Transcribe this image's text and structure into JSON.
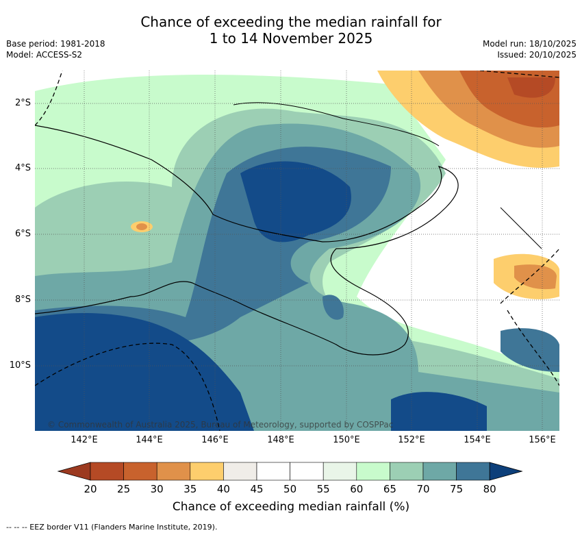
{
  "header": {
    "title_line1": "Chance of exceeding the median rainfall for",
    "title_line2": "1 to 14 November 2025",
    "base_period": "Base period: 1981-2018",
    "model": "Model: ACCESS-S2",
    "model_run": "Model run: 18/10/2025",
    "issued": "Issued: 20/10/2025"
  },
  "map": {
    "lat_ticks": [
      "2°S",
      "4°S",
      "6°S",
      "8°S",
      "10°S"
    ],
    "lon_ticks": [
      "142°E",
      "144°E",
      "146°E",
      "148°E",
      "150°E",
      "152°E",
      "154°E",
      "156°E"
    ],
    "credit": "© Commonwealth of Australia 2025, Bureau of Meteorology, supported by COSPPac"
  },
  "colorbar": {
    "title": "Chance of exceeding median rainfall (%)",
    "labels": [
      "20",
      "25",
      "30",
      "35",
      "40",
      "45",
      "50",
      "55",
      "60",
      "65",
      "70",
      "75",
      "80"
    ],
    "colors": [
      "#b54a25",
      "#c8622d",
      "#e0914a",
      "#fdce6d",
      "#f0ede8",
      "#ffffff",
      "#ffffff",
      "#e9f5e8",
      "#c8fbcc",
      "#9ccfb4",
      "#6ea8a6",
      "#3f7697",
      "#134b89"
    ],
    "low_color": "#9c3a20",
    "high_color": "#0d3f7a"
  },
  "footnote": "--  --  -- EEZ border V11 (Flanders Marine Institute, 2019)."
}
